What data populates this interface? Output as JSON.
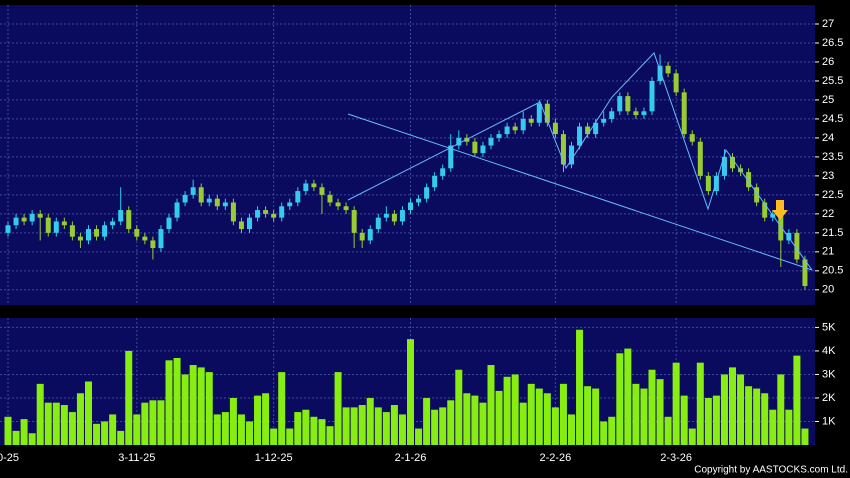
{
  "chart_data": {
    "type": "candlestick",
    "categories": [
      "0-25",
      null,
      null,
      null,
      null,
      null,
      null,
      null,
      null,
      null,
      null,
      null,
      null,
      null,
      null,
      null,
      "3-11-25",
      null,
      null,
      null,
      null,
      null,
      null,
      null,
      null,
      null,
      null,
      null,
      null,
      null,
      null,
      null,
      null,
      "1-12-25",
      null,
      null,
      null,
      null,
      null,
      null,
      null,
      null,
      null,
      null,
      null,
      null,
      null,
      null,
      null,
      null,
      "2-1-26",
      null,
      null,
      null,
      null,
      null,
      null,
      null,
      null,
      null,
      null,
      null,
      null,
      null,
      null,
      null,
      null,
      null,
      "2-2-26",
      null,
      null,
      null,
      null,
      null,
      null,
      null,
      null,
      null,
      null,
      null,
      null,
      null,
      null,
      "2-3-26",
      null,
      null,
      null,
      null,
      null,
      null,
      null,
      null,
      null,
      null,
      null,
      null,
      null,
      null,
      null,
      null
    ],
    "open": [
      21.5,
      21.7,
      21.9,
      21.8,
      22.0,
      21.9,
      21.5,
      21.8,
      21.7,
      21.4,
      21.3,
      21.6,
      21.4,
      21.7,
      21.8,
      22.1,
      21.6,
      21.4,
      21.3,
      21.1,
      21.6,
      21.9,
      22.3,
      22.5,
      22.7,
      22.3,
      22.4,
      22.2,
      22.3,
      21.8,
      21.6,
      21.9,
      22.1,
      22.0,
      21.9,
      22.2,
      22.3,
      22.6,
      22.8,
      22.7,
      22.5,
      22.3,
      22.2,
      22.1,
      21.5,
      21.3,
      21.6,
      21.9,
      22.0,
      21.8,
      22.1,
      22.3,
      22.4,
      22.7,
      23.0,
      23.2,
      23.8,
      24.0,
      23.9,
      23.6,
      23.8,
      24.0,
      24.1,
      24.3,
      24.2,
      24.5,
      24.4,
      24.9,
      24.4,
      24.1,
      23.3,
      23.8,
      24.3,
      24.1,
      24.4,
      24.5,
      24.7,
      25.1,
      24.7,
      24.6,
      24.7,
      25.5,
      25.9,
      25.7,
      25.2,
      24.1,
      23.9,
      23.0,
      22.6,
      23.0,
      23.5,
      23.2,
      23.1,
      22.7,
      22.3,
      21.9,
      22.0,
      21.3,
      21.5,
      20.8
    ],
    "high": [
      21.8,
      22.0,
      22.0,
      22.1,
      22.1,
      22.0,
      21.9,
      21.9,
      21.8,
      21.5,
      21.7,
      21.7,
      21.8,
      21.9,
      22.7,
      22.2,
      21.7,
      21.5,
      21.4,
      21.7,
      22.0,
      22.4,
      22.6,
      22.9,
      22.8,
      22.5,
      22.5,
      22.4,
      22.4,
      21.9,
      22.0,
      22.2,
      22.2,
      22.1,
      22.3,
      22.4,
      22.7,
      22.9,
      22.9,
      22.8,
      22.6,
      22.4,
      22.3,
      22.2,
      21.6,
      21.7,
      22.0,
      22.2,
      22.1,
      22.2,
      22.4,
      22.5,
      22.8,
      23.1,
      23.3,
      24.1,
      24.2,
      24.1,
      24.0,
      23.9,
      24.1,
      24.2,
      24.4,
      24.4,
      24.7,
      24.6,
      25.0,
      25.0,
      24.5,
      24.2,
      23.9,
      24.4,
      24.4,
      24.5,
      24.7,
      24.8,
      25.2,
      25.2,
      24.8,
      24.8,
      25.6,
      26.2,
      26.0,
      25.8,
      25.3,
      24.2,
      24.0,
      23.1,
      23.1,
      23.7,
      23.6,
      23.3,
      23.2,
      22.8,
      22.4,
      22.1,
      22.1,
      21.6,
      21.6,
      20.9
    ],
    "low": [
      21.4,
      21.6,
      21.7,
      21.7,
      21.3,
      21.4,
      21.4,
      21.6,
      21.3,
      21.1,
      21.2,
      21.3,
      21.3,
      21.6,
      21.7,
      21.5,
      21.3,
      21.2,
      20.8,
      21.0,
      21.5,
      21.8,
      22.2,
      22.4,
      22.2,
      22.2,
      22.1,
      22.1,
      21.7,
      21.5,
      21.5,
      21.8,
      21.9,
      21.8,
      21.8,
      22.1,
      22.2,
      22.5,
      22.6,
      22.0,
      22.2,
      22.1,
      22.0,
      21.1,
      21.1,
      21.2,
      21.5,
      21.8,
      21.7,
      21.7,
      22.0,
      22.2,
      22.3,
      22.6,
      22.9,
      23.1,
      23.7,
      23.8,
      23.5,
      23.5,
      23.7,
      23.9,
      24.0,
      24.1,
      24.1,
      24.3,
      24.3,
      24.3,
      24.0,
      23.1,
      23.2,
      23.7,
      24.0,
      24.0,
      24.3,
      24.4,
      24.6,
      24.6,
      24.5,
      24.5,
      24.6,
      25.4,
      25.6,
      25.1,
      24.0,
      23.8,
      22.9,
      22.5,
      22.5,
      22.9,
      23.1,
      23.0,
      22.6,
      22.2,
      21.8,
      21.8,
      20.6,
      21.2,
      20.7,
      20.0
    ],
    "close": [
      21.7,
      21.9,
      21.8,
      22.0,
      21.9,
      21.5,
      21.8,
      21.7,
      21.4,
      21.3,
      21.6,
      21.4,
      21.7,
      21.8,
      22.1,
      21.6,
      21.4,
      21.3,
      21.1,
      21.6,
      21.9,
      22.3,
      22.5,
      22.7,
      22.3,
      22.4,
      22.2,
      22.3,
      21.8,
      21.6,
      21.9,
      22.1,
      22.0,
      21.9,
      22.2,
      22.3,
      22.6,
      22.8,
      22.7,
      22.5,
      22.3,
      22.2,
      22.1,
      21.5,
      21.3,
      21.6,
      21.9,
      22.0,
      21.8,
      22.1,
      22.3,
      22.4,
      22.7,
      23.0,
      23.2,
      23.8,
      24.0,
      23.9,
      23.6,
      23.8,
      24.0,
      24.1,
      24.3,
      24.2,
      24.5,
      24.4,
      24.9,
      24.4,
      24.1,
      23.3,
      23.8,
      24.3,
      24.1,
      24.4,
      24.5,
      24.7,
      25.1,
      24.7,
      24.6,
      24.7,
      25.5,
      25.9,
      25.7,
      25.2,
      24.1,
      23.9,
      23.0,
      22.6,
      23.0,
      23.5,
      23.2,
      23.1,
      22.7,
      22.3,
      21.9,
      22.0,
      21.3,
      21.5,
      20.8,
      20.1
    ],
    "up_color": "#33ccee",
    "down_color": "#99cc33",
    "ylim": [
      19.6,
      27.5
    ],
    "yticks": [
      20,
      20.5,
      21,
      21.5,
      22,
      22.5,
      23,
      23.5,
      24,
      24.5,
      25,
      25.5,
      26,
      26.5,
      27
    ],
    "grid": true,
    "volume": {
      "color": "#88ee11",
      "values": [
        1200,
        600,
        1100,
        500,
        2600,
        1800,
        1800,
        1700,
        1400,
        2200,
        2700,
        900,
        1000,
        1300,
        600,
        4000,
        1300,
        1800,
        1900,
        1900,
        3600,
        3700,
        3000,
        3400,
        3300,
        3100,
        1300,
        1400,
        2000,
        1300,
        1000,
        2100,
        2200,
        700,
        3100,
        700,
        1400,
        1500,
        1200,
        1100,
        800,
        3100,
        1600,
        1600,
        1700,
        2000,
        1600,
        1400,
        1700,
        1300,
        4500,
        700,
        2000,
        1500,
        1600,
        1900,
        3200,
        2200,
        2100,
        1800,
        3400,
        2300,
        2900,
        3000,
        1800,
        2600,
        2400,
        2200,
        1600,
        2600,
        1300,
        4900,
        2500,
        2400,
        1000,
        1200,
        3900,
        4100,
        2600,
        2400,
        3200,
        2800,
        1200,
        3500,
        2100,
        700,
        3500,
        2000,
        2100,
        3000,
        3300,
        3000,
        2500,
        2400,
        2200,
        1500,
        3000,
        1500,
        3800,
        700
      ],
      "ylim": [
        0,
        5400
      ],
      "yticks": [
        {
          "value": 1000,
          "label": "1K"
        },
        {
          "value": 2000,
          "label": "2K"
        },
        {
          "value": 3000,
          "label": "3K"
        },
        {
          "value": 4000,
          "label": "4K"
        },
        {
          "value": 5000,
          "label": "5K"
        }
      ]
    }
  },
  "footer": {
    "copyright": "Copyright by AASTOCKS.com Ltd."
  }
}
